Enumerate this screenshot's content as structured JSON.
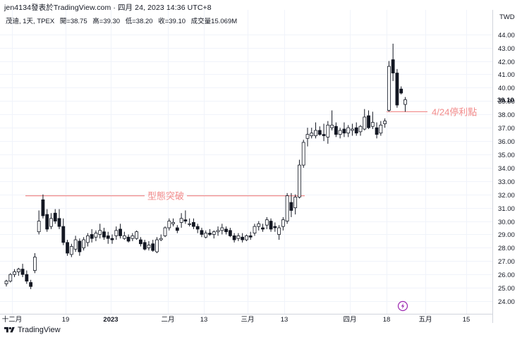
{
  "header": {
    "title": "jen4134發表於TradingView.com · 四月 24, 2023 14:36 UTC+8"
  },
  "legend": {
    "symbol": "茂迪, 1天, TPEX",
    "open": "開=38.75",
    "high": "高=39.30",
    "low": "低=38.20",
    "close": "收=39.10",
    "volume": "成交量15.069M"
  },
  "currency": "TWD",
  "last_price_label": "39.10",
  "footer": {
    "brand": "TradingView"
  },
  "annotations": {
    "breakout_label": "型態突破",
    "stop_label": "4/24停利點"
  },
  "colors": {
    "up_body": "#ffffff",
    "down_body": "#131722",
    "wick": "#131722",
    "annotation": "#f28b8b",
    "grid": "#f0f3fa",
    "axis_text": "#131722",
    "lightning_icon": "#9c27b0"
  },
  "chart_data": {
    "type": "candlestick",
    "title": "",
    "xlabel": "",
    "ylabel": "",
    "ylim": [
      23.0,
      45.2
    ],
    "grid": true,
    "y_ticks": [
      "24.00",
      "25.00",
      "26.00",
      "27.00",
      "28.00",
      "29.00",
      "30.00",
      "31.00",
      "32.00",
      "33.00",
      "34.00",
      "35.00",
      "36.00",
      "37.00",
      "38.00",
      "39.00",
      "40.00",
      "41.00",
      "42.00",
      "43.00",
      "44.00"
    ],
    "x_ticks": [
      "十二月",
      "19",
      "2023",
      "二月",
      "13",
      "三月",
      "13",
      "四月",
      "18",
      "五月",
      "15"
    ],
    "candles": [
      [
        25.3,
        25.6,
        25.1,
        25.5
      ],
      [
        25.5,
        26.1,
        25.4,
        26.0
      ],
      [
        26.0,
        26.4,
        25.8,
        26.2
      ],
      [
        26.2,
        26.5,
        25.9,
        26.4
      ],
      [
        26.4,
        26.8,
        25.8,
        26.0
      ],
      [
        26.0,
        26.3,
        25.3,
        25.5
      ],
      [
        25.4,
        25.6,
        24.9,
        25.1
      ],
      [
        26.3,
        27.6,
        26.1,
        27.3
      ],
      [
        29.2,
        30.8,
        29.0,
        30.0
      ],
      [
        31.6,
        32.0,
        30.2,
        30.4
      ],
      [
        30.5,
        30.9,
        29.2,
        29.4
      ],
      [
        29.6,
        30.6,
        29.4,
        30.2
      ],
      [
        30.6,
        30.9,
        29.8,
        30.0
      ],
      [
        30.2,
        30.9,
        29.4,
        29.6
      ],
      [
        29.6,
        30.2,
        28.2,
        28.4
      ],
      [
        28.4,
        28.6,
        27.4,
        27.6
      ],
      [
        27.5,
        28.3,
        27.3,
        28.1
      ],
      [
        27.9,
        28.9,
        27.7,
        28.6
      ],
      [
        28.5,
        28.7,
        27.4,
        27.7
      ],
      [
        28.0,
        28.8,
        27.8,
        28.6
      ],
      [
        28.4,
        29.1,
        28.1,
        28.9
      ],
      [
        29.0,
        29.4,
        28.4,
        28.7
      ],
      [
        28.8,
        29.3,
        28.5,
        29.1
      ],
      [
        29.0,
        29.8,
        28.7,
        29.3
      ],
      [
        29.2,
        29.5,
        28.6,
        28.8
      ],
      [
        28.9,
        29.2,
        28.3,
        28.7
      ],
      [
        28.7,
        29.0,
        28.3,
        28.6
      ],
      [
        28.9,
        29.6,
        28.6,
        29.3
      ],
      [
        29.4,
        29.8,
        28.7,
        28.9
      ],
      [
        28.7,
        29.2,
        28.6,
        28.9
      ],
      [
        28.8,
        29.0,
        28.4,
        28.5
      ],
      [
        28.7,
        29.1,
        28.5,
        28.9
      ],
      [
        28.7,
        29.3,
        28.6,
        29.2
      ],
      [
        28.6,
        28.8,
        28.1,
        28.3
      ],
      [
        28.4,
        28.6,
        27.8,
        27.9
      ],
      [
        28.0,
        28.5,
        27.8,
        28.2
      ],
      [
        28.3,
        28.6,
        27.7,
        27.8
      ],
      [
        27.7,
        28.8,
        27.6,
        28.6
      ],
      [
        28.6,
        29.0,
        28.5,
        28.7
      ],
      [
        28.9,
        29.6,
        28.8,
        29.5
      ],
      [
        29.5,
        30.2,
        29.3,
        30.0
      ],
      [
        29.8,
        30.2,
        29.6,
        29.9
      ],
      [
        29.5,
        29.7,
        29.1,
        29.3
      ],
      [
        29.9,
        30.6,
        29.5,
        30.2
      ],
      [
        30.1,
        30.8,
        29.8,
        30.0
      ],
      [
        29.8,
        30.2,
        29.6,
        29.8
      ],
      [
        29.9,
        30.2,
        29.4,
        29.6
      ],
      [
        29.6,
        29.8,
        29.1,
        29.4
      ],
      [
        29.3,
        29.5,
        28.8,
        29.0
      ],
      [
        28.8,
        29.3,
        28.7,
        29.1
      ],
      [
        29.1,
        29.4,
        28.9,
        29.0
      ],
      [
        29.0,
        29.3,
        28.7,
        29.2
      ],
      [
        29.2,
        29.6,
        28.9,
        29.3
      ],
      [
        29.3,
        29.8,
        29.0,
        29.5
      ],
      [
        29.4,
        29.6,
        29.0,
        29.2
      ],
      [
        29.3,
        29.5,
        28.8,
        28.9
      ],
      [
        28.9,
        29.1,
        28.4,
        28.6
      ],
      [
        28.7,
        29.1,
        28.5,
        28.9
      ],
      [
        28.8,
        29.1,
        28.4,
        28.6
      ],
      [
        28.6,
        29.0,
        28.5,
        28.9
      ],
      [
        28.9,
        29.2,
        28.6,
        28.8
      ],
      [
        29.1,
        29.8,
        28.9,
        29.6
      ],
      [
        29.6,
        30.0,
        29.3,
        29.8
      ],
      [
        29.5,
        29.8,
        29.2,
        29.4
      ],
      [
        29.7,
        30.3,
        29.4,
        30.1
      ],
      [
        30.0,
        30.2,
        29.2,
        29.4
      ],
      [
        29.6,
        29.9,
        29.2,
        29.5
      ],
      [
        29.0,
        29.7,
        28.6,
        29.5
      ],
      [
        29.6,
        30.3,
        29.3,
        30.1
      ],
      [
        30.0,
        32.1,
        29.8,
        31.9
      ],
      [
        31.4,
        32.1,
        30.3,
        30.8
      ],
      [
        31.0,
        32.0,
        30.5,
        31.8
      ],
      [
        31.8,
        34.6,
        31.7,
        34.2
      ],
      [
        34.2,
        36.1,
        34.0,
        35.9
      ],
      [
        36.2,
        37.0,
        35.6,
        36.5
      ],
      [
        36.4,
        37.0,
        36.2,
        36.6
      ],
      [
        36.4,
        37.4,
        36.2,
        36.8
      ],
      [
        36.8,
        37.1,
        36.4,
        36.5
      ],
      [
        36.5,
        37.3,
        36.0,
        36.4
      ],
      [
        36.3,
        37.5,
        35.8,
        37.2
      ],
      [
        37.0,
        38.3,
        36.8,
        37.2
      ],
      [
        37.1,
        37.4,
        36.3,
        36.5
      ],
      [
        36.5,
        37.0,
        36.2,
        36.8
      ],
      [
        36.9,
        37.4,
        36.3,
        36.6
      ],
      [
        36.6,
        37.2,
        36.3,
        37.0
      ],
      [
        36.8,
        37.3,
        36.4,
        36.9
      ],
      [
        37.0,
        37.4,
        36.4,
        36.6
      ],
      [
        36.7,
        37.2,
        36.4,
        37.1
      ],
      [
        36.9,
        38.4,
        36.8,
        37.8
      ],
      [
        37.9,
        38.3,
        36.9,
        37.0
      ],
      [
        37.1,
        38.2,
        36.9,
        37.4
      ],
      [
        37.0,
        37.4,
        36.2,
        36.5
      ],
      [
        36.6,
        37.5,
        36.4,
        37.2
      ],
      [
        37.3,
        37.7,
        37.0,
        37.5
      ],
      [
        38.3,
        42.0,
        38.2,
        41.6
      ],
      [
        42.1,
        43.3,
        40.5,
        41.1
      ],
      [
        41.1,
        41.4,
        38.5,
        38.7
      ],
      [
        39.9,
        40.1,
        39.5,
        39.6
      ],
      [
        38.75,
        39.3,
        38.2,
        39.1
      ]
    ]
  }
}
